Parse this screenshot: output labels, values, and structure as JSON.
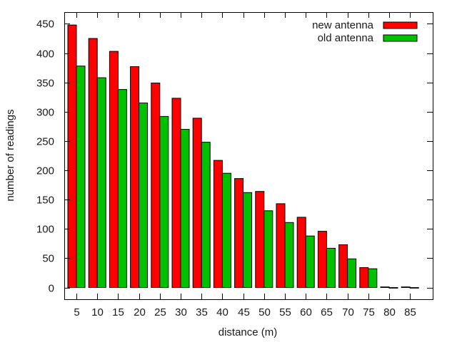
{
  "chart_data": {
    "type": "bar",
    "xlabel": "distance (m)",
    "ylabel": "number of readings",
    "categories": [
      "5",
      "10",
      "15",
      "20",
      "25",
      "30",
      "35",
      "40",
      "45",
      "50",
      "55",
      "60",
      "65",
      "70",
      "75",
      "80",
      "85"
    ],
    "ylim": [
      -20,
      470
    ],
    "yticks": [
      0,
      50,
      100,
      150,
      200,
      250,
      300,
      350,
      400,
      450
    ],
    "grid": false,
    "legend_position": "top-right",
    "series": [
      {
        "name": "new antenna",
        "color": "#ff0000",
        "values": [
          448,
          425,
          403,
          377,
          349,
          323,
          289,
          217,
          186,
          164,
          143,
          120,
          96,
          73,
          34,
          1,
          1
        ]
      },
      {
        "name": "old antenna",
        "color": "#00c000",
        "values": [
          378,
          358,
          338,
          315,
          292,
          270,
          248,
          195,
          162,
          131,
          111,
          88,
          67,
          49,
          32,
          0,
          0
        ]
      }
    ]
  }
}
